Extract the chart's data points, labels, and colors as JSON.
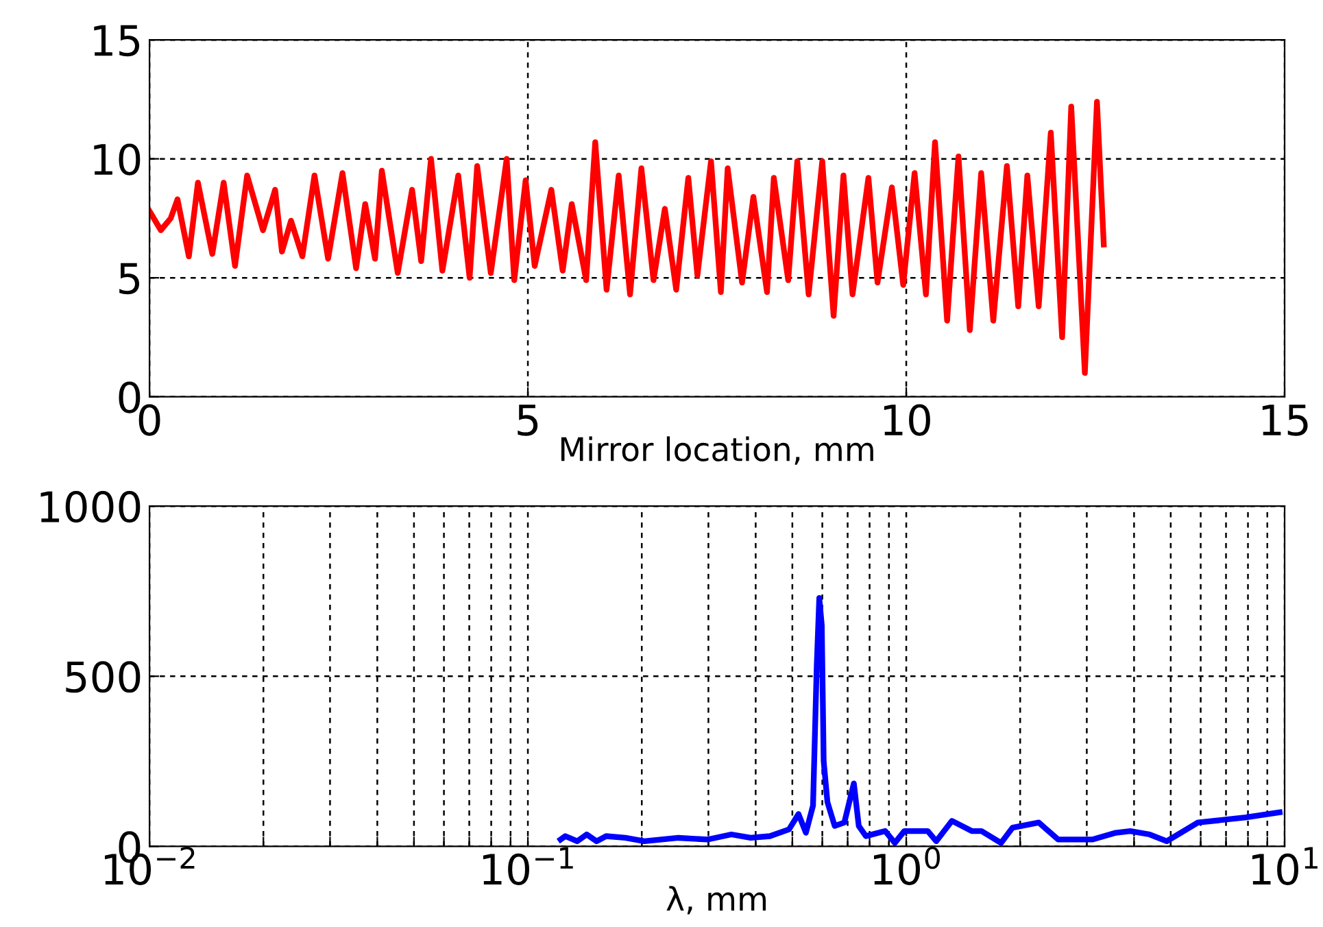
{
  "chart_data": [
    {
      "type": "line",
      "xlabel": "Mirror location, mm",
      "xlim": [
        0,
        15
      ],
      "xticks": [
        0,
        5,
        10,
        15
      ],
      "ylim": [
        0,
        15
      ],
      "yticks": [
        0,
        5,
        10,
        15
      ],
      "grid": true,
      "line_style": "solid",
      "series": [
        {
          "color": "#ff0000",
          "x": [
            0,
            0.15,
            0.28,
            0.37,
            0.52,
            0.64,
            0.83,
            0.98,
            1.13,
            1.29,
            1.5,
            1.66,
            1.75,
            1.87,
            2.02,
            2.18,
            2.36,
            2.55,
            2.73,
            2.85,
            2.98,
            3.07,
            3.28,
            3.47,
            3.59,
            3.72,
            3.87,
            4.08,
            4.23,
            4.33,
            4.51,
            4.72,
            4.82,
            4.97,
            5.09,
            5.31,
            5.46,
            5.58,
            5.77,
            5.89,
            6.04,
            6.2,
            6.35,
            6.5,
            6.66,
            6.81,
            6.96,
            7.12,
            7.24,
            7.42,
            7.55,
            7.64,
            7.83,
            7.98,
            8.16,
            8.25,
            8.44,
            8.56,
            8.71,
            8.89,
            9.04,
            9.17,
            9.29,
            9.5,
            9.62,
            9.81,
            9.96,
            10.11,
            10.26,
            10.38,
            10.54,
            10.69,
            10.84,
            10.99,
            11.15,
            11.33,
            11.48,
            11.6,
            11.75,
            11.91,
            12.06,
            12.18,
            12.36,
            12.52,
            12.61
          ],
          "values": [
            7.8,
            7.0,
            7.5,
            8.3,
            5.9,
            9.0,
            6.0,
            9.0,
            5.5,
            9.3,
            7.0,
            8.7,
            6.1,
            7.4,
            5.9,
            9.3,
            5.8,
            9.4,
            5.4,
            8.1,
            5.8,
            9.5,
            5.2,
            8.7,
            5.7,
            10.0,
            5.3,
            9.3,
            5.0,
            9.7,
            5.2,
            10.0,
            4.9,
            9.1,
            5.5,
            8.7,
            5.3,
            8.1,
            4.9,
            10.7,
            4.5,
            9.3,
            4.3,
            9.6,
            4.9,
            7.9,
            4.5,
            9.2,
            5.1,
            9.9,
            4.4,
            9.6,
            4.8,
            8.4,
            4.4,
            9.2,
            4.9,
            9.9,
            4.3,
            9.9,
            3.4,
            9.3,
            4.3,
            9.2,
            4.8,
            8.8,
            4.7,
            9.4,
            4.3,
            10.7,
            3.2,
            10.1,
            2.8,
            9.4,
            3.2,
            9.7,
            3.8,
            9.3,
            3.8,
            11.1,
            2.5,
            12.2,
            1.0,
            12.4,
            6.4
          ]
        }
      ]
    },
    {
      "type": "line",
      "xlabel": "λ, mm",
      "log": "x",
      "xlim": [
        0.01,
        10
      ],
      "xticks": [
        {
          "value": 0.01,
          "label": "10$^{−2}$"
        },
        {
          "value": 0.02,
          "label": null
        },
        {
          "value": 0.03,
          "label": null
        },
        {
          "value": 0.04,
          "label": null
        },
        {
          "value": 0.05,
          "label": null
        },
        {
          "value": 0.06,
          "label": null
        },
        {
          "value": 0.07,
          "label": null
        },
        {
          "value": 0.08,
          "label": null
        },
        {
          "value": 0.09,
          "label": null
        },
        {
          "value": 0.1,
          "label": "10$^{−1}$"
        },
        {
          "value": 0.2,
          "label": null
        },
        {
          "value": 0.3,
          "label": null
        },
        {
          "value": 0.4,
          "label": null
        },
        {
          "value": 0.5,
          "label": null
        },
        {
          "value": 0.6,
          "label": null
        },
        {
          "value": 0.7,
          "label": null
        },
        {
          "value": 0.8,
          "label": null
        },
        {
          "value": 0.9,
          "label": null
        },
        {
          "value": 1,
          "label": "10$^{0}$"
        },
        {
          "value": 2,
          "label": null
        },
        {
          "value": 3,
          "label": null
        },
        {
          "value": 4,
          "label": null
        },
        {
          "value": 5,
          "label": null
        },
        {
          "value": 6,
          "label": null
        },
        {
          "value": 7,
          "label": null
        },
        {
          "value": 8,
          "label": null
        },
        {
          "value": 9,
          "label": null
        },
        {
          "value": 10,
          "label": "10$^{1}$"
        }
      ],
      "ylim": [
        0,
        1000
      ],
      "yticks": [
        0,
        500,
        1000
      ],
      "grid": true,
      "line_style": "solid",
      "series": [
        {
          "color": "#0000ff",
          "x": [
            0.122,
            0.1256,
            0.135,
            0.143,
            0.152,
            0.161,
            0.181,
            0.203,
            0.25,
            0.298,
            0.345,
            0.388,
            0.436,
            0.49,
            0.519,
            0.543,
            0.567,
            0.58,
            0.589,
            0.598,
            0.605,
            0.619,
            0.647,
            0.686,
            0.727,
            0.749,
            0.782,
            0.88,
            0.933,
            0.988,
            1.14,
            1.2,
            1.32,
            1.49,
            1.58,
            1.78,
            1.91,
            2.24,
            2.52,
            3.1,
            3.58,
            3.91,
            4.4,
            4.88,
            5.9,
            7.9,
            9.7
          ],
          "values": [
            20,
            30,
            15,
            35,
            15,
            30,
            25,
            15,
            25,
            20,
            35,
            25,
            30,
            50,
            95,
            40,
            120,
            530,
            730,
            650,
            250,
            130,
            60,
            70,
            185,
            60,
            30,
            45,
            10,
            45,
            45,
            15,
            75,
            45,
            45,
            10,
            55,
            70,
            20,
            20,
            40,
            45,
            35,
            15,
            70,
            85,
            100
          ]
        }
      ]
    }
  ]
}
